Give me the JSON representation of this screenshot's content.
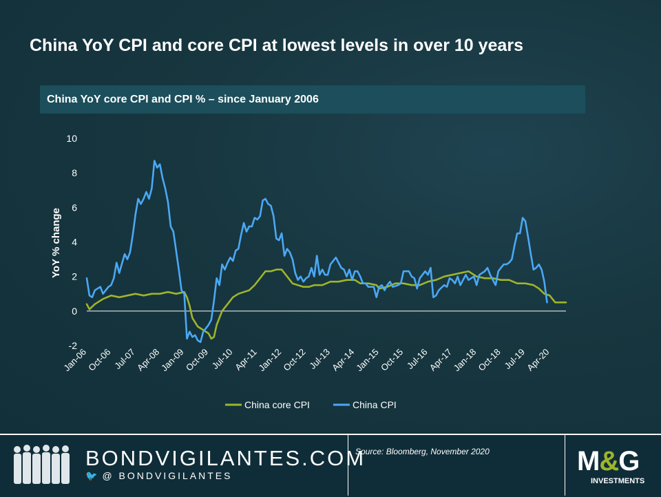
{
  "title": "China YoY CPI and core CPI at lowest levels in over 10 years",
  "footer": {
    "brand": "BONDVIGILANTES.COM",
    "handle": "@ BONDVIGILANTES",
    "source": "Source: Bloomberg, November 2020",
    "logo_left": "M",
    "logo_amp": "&",
    "logo_right": "G",
    "logo_sub": "INVESTMENTS"
  },
  "chart_data": {
    "type": "line",
    "title": "China YoY core CPI and CPI % – since January 2006",
    "xlabel": "",
    "ylabel": "YoY % change",
    "ylim": [
      -2,
      10
    ],
    "yticks": [
      -2,
      0,
      2,
      4,
      6,
      8,
      10
    ],
    "x_start": "Jan-06",
    "x_end": "Oct-20",
    "x_tick_labels": [
      "Jan-06",
      "Oct-06",
      "Jul-07",
      "Apr-08",
      "Jan-09",
      "Oct-09",
      "Jul-10",
      "Apr-11",
      "Jan-12",
      "Oct-12",
      "Jul-13",
      "Apr-14",
      "Jan-15",
      "Oct-15",
      "Jul-16",
      "Apr-17",
      "Jan-18",
      "Oct-18",
      "Jul-19",
      "Apr-20"
    ],
    "legend": [
      "China core CPI",
      "China CPI"
    ],
    "legend_position": "bottom",
    "series": [
      {
        "name": "China core CPI",
        "color": "#9fb52b",
        "anchors": [
          [
            0,
            0.4
          ],
          [
            1,
            0.1
          ],
          [
            3,
            0.4
          ],
          [
            6,
            0.7
          ],
          [
            9,
            0.9
          ],
          [
            12,
            0.8
          ],
          [
            15,
            0.9
          ],
          [
            18,
            1.0
          ],
          [
            21,
            0.9
          ],
          [
            24,
            1.0
          ],
          [
            27,
            1.0
          ],
          [
            30,
            1.1
          ],
          [
            33,
            1.0
          ],
          [
            36,
            1.1
          ],
          [
            37,
            0.8
          ],
          [
            38,
            0.3
          ],
          [
            39,
            -0.4
          ],
          [
            41,
            -0.9
          ],
          [
            43,
            -1.1
          ],
          [
            45,
            -1.3
          ],
          [
            46,
            -1.6
          ],
          [
            47,
            -1.5
          ],
          [
            48,
            -0.8
          ],
          [
            50,
            0.0
          ],
          [
            52,
            0.4
          ],
          [
            54,
            0.8
          ],
          [
            56,
            1.0
          ],
          [
            58,
            1.1
          ],
          [
            60,
            1.2
          ],
          [
            62,
            1.5
          ],
          [
            64,
            1.9
          ],
          [
            66,
            2.3
          ],
          [
            68,
            2.3
          ],
          [
            70,
            2.4
          ],
          [
            72,
            2.4
          ],
          [
            74,
            2.0
          ],
          [
            76,
            1.6
          ],
          [
            78,
            1.5
          ],
          [
            80,
            1.4
          ],
          [
            82,
            1.4
          ],
          [
            84,
            1.5
          ],
          [
            87,
            1.5
          ],
          [
            90,
            1.7
          ],
          [
            93,
            1.7
          ],
          [
            96,
            1.8
          ],
          [
            99,
            1.8
          ],
          [
            101,
            1.6
          ],
          [
            104,
            1.6
          ],
          [
            107,
            1.5
          ],
          [
            108,
            1.3
          ],
          [
            111,
            1.4
          ],
          [
            114,
            1.6
          ],
          [
            117,
            1.6
          ],
          [
            120,
            1.5
          ],
          [
            123,
            1.5
          ],
          [
            126,
            1.7
          ],
          [
            129,
            1.8
          ],
          [
            132,
            2.0
          ],
          [
            135,
            2.1
          ],
          [
            138,
            2.2
          ],
          [
            141,
            2.3
          ],
          [
            144,
            2.0
          ],
          [
            147,
            1.9
          ],
          [
            150,
            1.9
          ],
          [
            153,
            1.8
          ],
          [
            156,
            1.8
          ],
          [
            159,
            1.6
          ],
          [
            162,
            1.6
          ],
          [
            165,
            1.5
          ],
          [
            167,
            1.3
          ],
          [
            169,
            1.0
          ],
          [
            171,
            0.9
          ],
          [
            173,
            0.5
          ],
          [
            175,
            0.5
          ],
          [
            177,
            0.5
          ]
        ]
      },
      {
        "name": "China CPI",
        "color": "#4ba8f5",
        "anchors": [
          [
            0,
            1.9
          ],
          [
            1,
            0.9
          ],
          [
            2,
            0.8
          ],
          [
            3,
            1.2
          ],
          [
            5,
            1.4
          ],
          [
            6,
            1.0
          ],
          [
            8,
            1.4
          ],
          [
            9,
            1.5
          ],
          [
            10,
            1.9
          ],
          [
            11,
            2.8
          ],
          [
            12,
            2.2
          ],
          [
            14,
            3.3
          ],
          [
            15,
            3.0
          ],
          [
            16,
            3.4
          ],
          [
            17,
            4.4
          ],
          [
            18,
            5.6
          ],
          [
            19,
            6.5
          ],
          [
            20,
            6.2
          ],
          [
            21,
            6.5
          ],
          [
            22,
            6.9
          ],
          [
            23,
            6.5
          ],
          [
            24,
            7.1
          ],
          [
            25,
            8.7
          ],
          [
            26,
            8.3
          ],
          [
            27,
            8.5
          ],
          [
            28,
            7.7
          ],
          [
            29,
            7.1
          ],
          [
            30,
            6.3
          ],
          [
            31,
            4.9
          ],
          [
            32,
            4.6
          ],
          [
            34,
            2.4
          ],
          [
            35,
            1.2
          ],
          [
            36,
            1.0
          ],
          [
            37,
            -1.6
          ],
          [
            38,
            -1.2
          ],
          [
            39,
            -1.5
          ],
          [
            40,
            -1.4
          ],
          [
            41,
            -1.7
          ],
          [
            42,
            -1.8
          ],
          [
            43,
            -1.2
          ],
          [
            45,
            -0.8
          ],
          [
            46,
            -0.5
          ],
          [
            47,
            0.6
          ],
          [
            48,
            1.9
          ],
          [
            49,
            1.5
          ],
          [
            50,
            2.7
          ],
          [
            51,
            2.4
          ],
          [
            52,
            2.8
          ],
          [
            53,
            3.1
          ],
          [
            54,
            2.9
          ],
          [
            55,
            3.5
          ],
          [
            56,
            3.6
          ],
          [
            57,
            4.4
          ],
          [
            58,
            5.1
          ],
          [
            59,
            4.6
          ],
          [
            60,
            4.9
          ],
          [
            61,
            4.9
          ],
          [
            62,
            5.4
          ],
          [
            63,
            5.3
          ],
          [
            64,
            5.5
          ],
          [
            65,
            6.4
          ],
          [
            66,
            6.5
          ],
          [
            67,
            6.2
          ],
          [
            68,
            6.1
          ],
          [
            69,
            5.5
          ],
          [
            70,
            4.2
          ],
          [
            71,
            4.1
          ],
          [
            72,
            4.5
          ],
          [
            73,
            3.2
          ],
          [
            74,
            3.6
          ],
          [
            75,
            3.4
          ],
          [
            76,
            3.0
          ],
          [
            77,
            2.2
          ],
          [
            78,
            1.8
          ],
          [
            79,
            2.0
          ],
          [
            80,
            1.7
          ],
          [
            81,
            1.9
          ],
          [
            82,
            2.0
          ],
          [
            83,
            2.5
          ],
          [
            84,
            2.0
          ],
          [
            85,
            3.2
          ],
          [
            86,
            2.1
          ],
          [
            87,
            2.4
          ],
          [
            88,
            2.1
          ],
          [
            89,
            2.1
          ],
          [
            90,
            2.7
          ],
          [
            92,
            3.1
          ],
          [
            93,
            2.8
          ],
          [
            94,
            2.5
          ],
          [
            95,
            2.4
          ],
          [
            96,
            2.0
          ],
          [
            97,
            2.4
          ],
          [
            98,
            1.8
          ],
          [
            99,
            2.3
          ],
          [
            100,
            2.3
          ],
          [
            101,
            2.0
          ],
          [
            102,
            1.6
          ],
          [
            103,
            1.6
          ],
          [
            104,
            1.4
          ],
          [
            106,
            1.4
          ],
          [
            107,
            0.8
          ],
          [
            108,
            1.4
          ],
          [
            109,
            1.5
          ],
          [
            110,
            1.2
          ],
          [
            111,
            1.5
          ],
          [
            112,
            1.7
          ],
          [
            113,
            1.4
          ],
          [
            115,
            1.5
          ],
          [
            116,
            1.6
          ],
          [
            117,
            2.3
          ],
          [
            119,
            2.3
          ],
          [
            120,
            2.0
          ],
          [
            121,
            1.9
          ],
          [
            122,
            1.3
          ],
          [
            123,
            1.9
          ],
          [
            125,
            2.3
          ],
          [
            126,
            2.1
          ],
          [
            127,
            2.5
          ],
          [
            128,
            0.8
          ],
          [
            129,
            0.9
          ],
          [
            130,
            1.2
          ],
          [
            132,
            1.5
          ],
          [
            133,
            1.4
          ],
          [
            134,
            1.9
          ],
          [
            135,
            1.8
          ],
          [
            136,
            1.6
          ],
          [
            137,
            2.0
          ],
          [
            138,
            1.5
          ],
          [
            140,
            2.1
          ],
          [
            141,
            1.8
          ],
          [
            143,
            2.0
          ],
          [
            144,
            1.5
          ],
          [
            145,
            2.1
          ],
          [
            147,
            2.3
          ],
          [
            148,
            2.5
          ],
          [
            149,
            2.1
          ],
          [
            150,
            1.8
          ],
          [
            151,
            1.5
          ],
          [
            152,
            2.3
          ],
          [
            153,
            2.5
          ],
          [
            154,
            2.7
          ],
          [
            155,
            2.7
          ],
          [
            156,
            2.8
          ],
          [
            157,
            3.0
          ],
          [
            158,
            3.8
          ],
          [
            159,
            4.5
          ],
          [
            160,
            4.5
          ],
          [
            161,
            5.4
          ],
          [
            162,
            5.2
          ],
          [
            163,
            4.3
          ],
          [
            164,
            3.3
          ],
          [
            165,
            2.4
          ],
          [
            166,
            2.5
          ],
          [
            167,
            2.7
          ],
          [
            168,
            2.4
          ],
          [
            169,
            1.7
          ],
          [
            170,
            0.5
          ]
        ]
      }
    ]
  }
}
